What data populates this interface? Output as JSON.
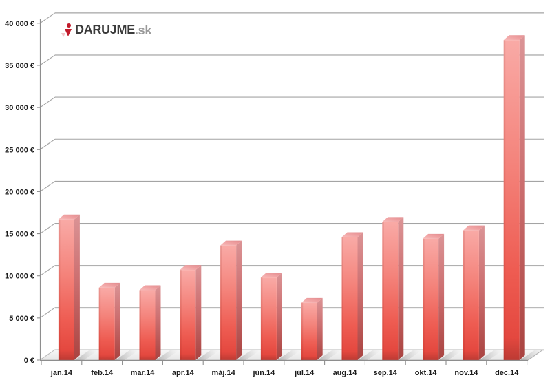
{
  "logo": {
    "text": "DARUJME",
    "suffix": ".sk",
    "icon": "logo-mark-icon",
    "brand_red": "#c21b2b",
    "text_color": "#3b3b3b",
    "suffix_color": "#9a9a9a"
  },
  "chart_data": {
    "type": "bar",
    "style": "3d-column",
    "title": "",
    "xlabel": "",
    "ylabel": "",
    "currency_symbol": "€",
    "categories": [
      "jan.14",
      "feb.14",
      "mar.14",
      "apr.14",
      "máj.14",
      "jún.14",
      "júl.14",
      "aug.14",
      "sep.14",
      "okt.14",
      "nov.14",
      "dec.14"
    ],
    "values": [
      16700,
      8600,
      8300,
      10700,
      13600,
      9800,
      6800,
      14600,
      16400,
      14400,
      15400,
      38000
    ],
    "y_ticks": [
      "0 €",
      "5 000 €",
      "10 000 €",
      "15 000 €",
      "20 000 €",
      "25 000 €",
      "30 000 €",
      "35 000 €",
      "40 000 €"
    ],
    "ylim": [
      0,
      40000
    ],
    "y_step": 5000,
    "grid": true,
    "legend": false,
    "bar_color": "#ee5b52",
    "grid_color": "#a4a4a4",
    "axis_color": "#8e8e8e",
    "label_color": "#1b1b1b"
  }
}
